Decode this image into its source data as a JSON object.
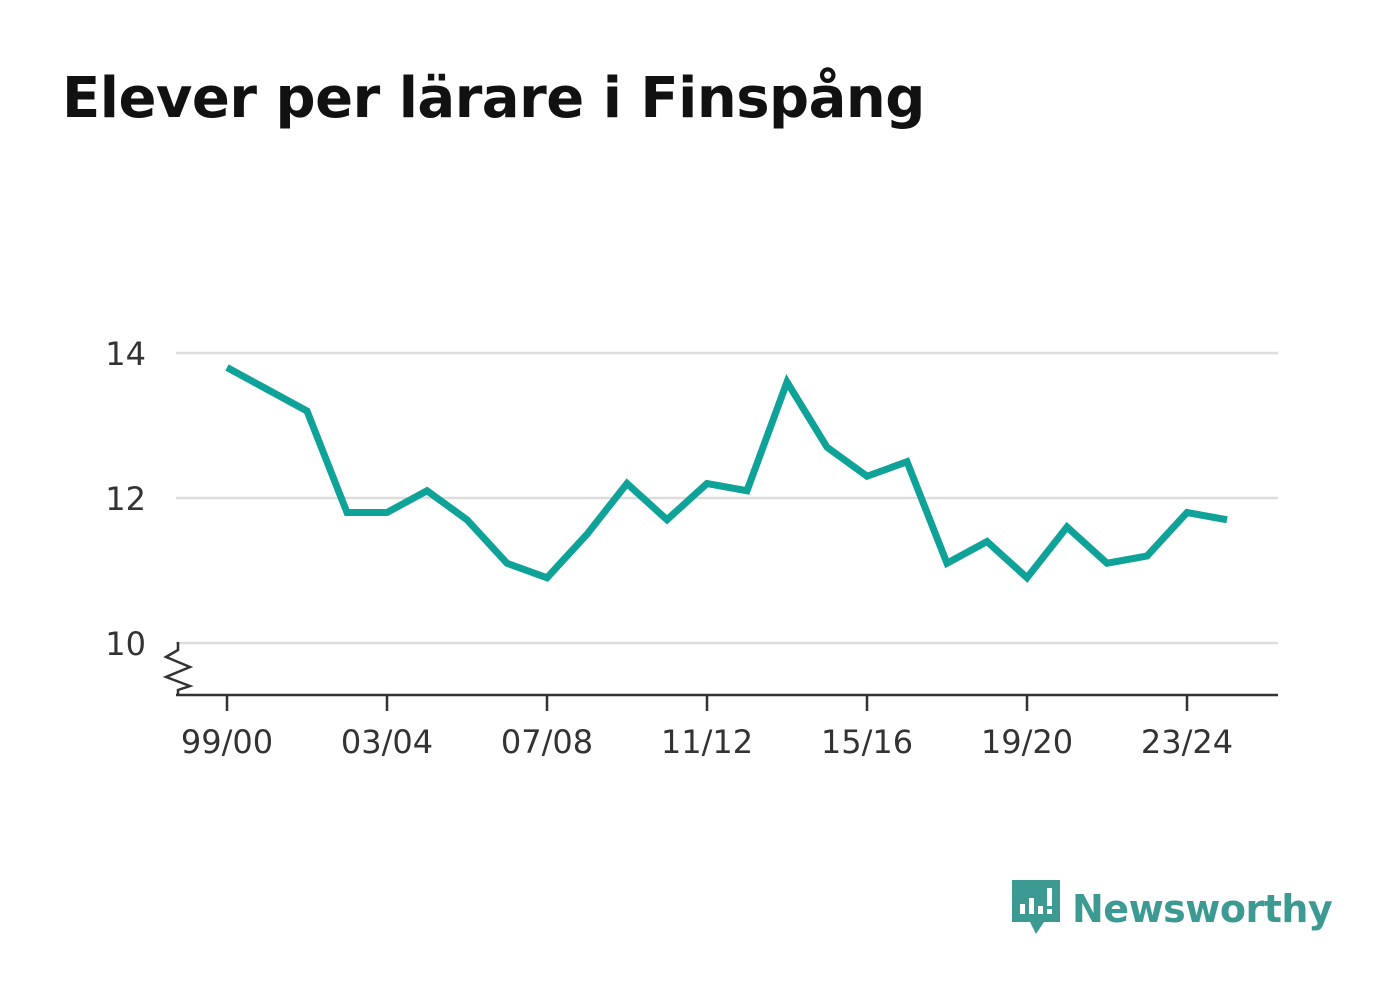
{
  "chart_data": {
    "type": "line",
    "title": "Elever per lärare i Finspång",
    "xlabel": "",
    "ylabel": "",
    "x": [
      "99/00",
      "00/01",
      "01/02",
      "02/03",
      "03/04",
      "04/05",
      "05/06",
      "06/07",
      "07/08",
      "08/09",
      "09/10",
      "10/11",
      "11/12",
      "12/13",
      "13/14",
      "14/15",
      "15/16",
      "16/17",
      "17/18",
      "18/19",
      "19/20",
      "20/21",
      "21/22",
      "22/23",
      "23/24",
      "24/25"
    ],
    "x_tick_labels": [
      "99/00",
      "03/04",
      "07/08",
      "11/12",
      "15/16",
      "19/20",
      "23/24"
    ],
    "series": [
      {
        "values": [
          13.8,
          13.5,
          13.2,
          11.8,
          11.8,
          12.1,
          11.7,
          11.1,
          10.9,
          11.5,
          12.2,
          11.7,
          12.2,
          12.1,
          13.6,
          12.7,
          12.3,
          12.5,
          11.1,
          11.4,
          10.9,
          11.6,
          11.1,
          11.2,
          11.8,
          11.7
        ]
      }
    ],
    "yticks": [
      10,
      12,
      14
    ],
    "ylim": [
      9.3,
      14.3
    ],
    "y_axis_break": true,
    "grid": true,
    "line_color": "#0ea298"
  },
  "brand": {
    "name": "Newsworthy",
    "color": "#3d9a92"
  }
}
